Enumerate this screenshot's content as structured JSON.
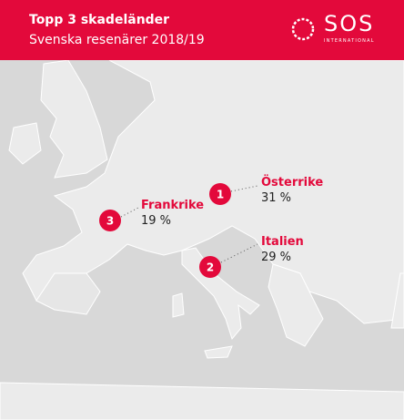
{
  "header": {
    "title": "Topp 3 skadeländer",
    "subtitle": "Svenska resenärer 2018/19"
  },
  "logo": {
    "name": "SOS",
    "tagline": "INTERNATIONAL"
  },
  "markers": [
    {
      "rank": "1",
      "country": "Österrike",
      "share": "31 %"
    },
    {
      "rank": "2",
      "country": "Italien",
      "share": "29 %"
    },
    {
      "rank": "3",
      "country": "Frankrike",
      "share": "19 %"
    }
  ]
}
